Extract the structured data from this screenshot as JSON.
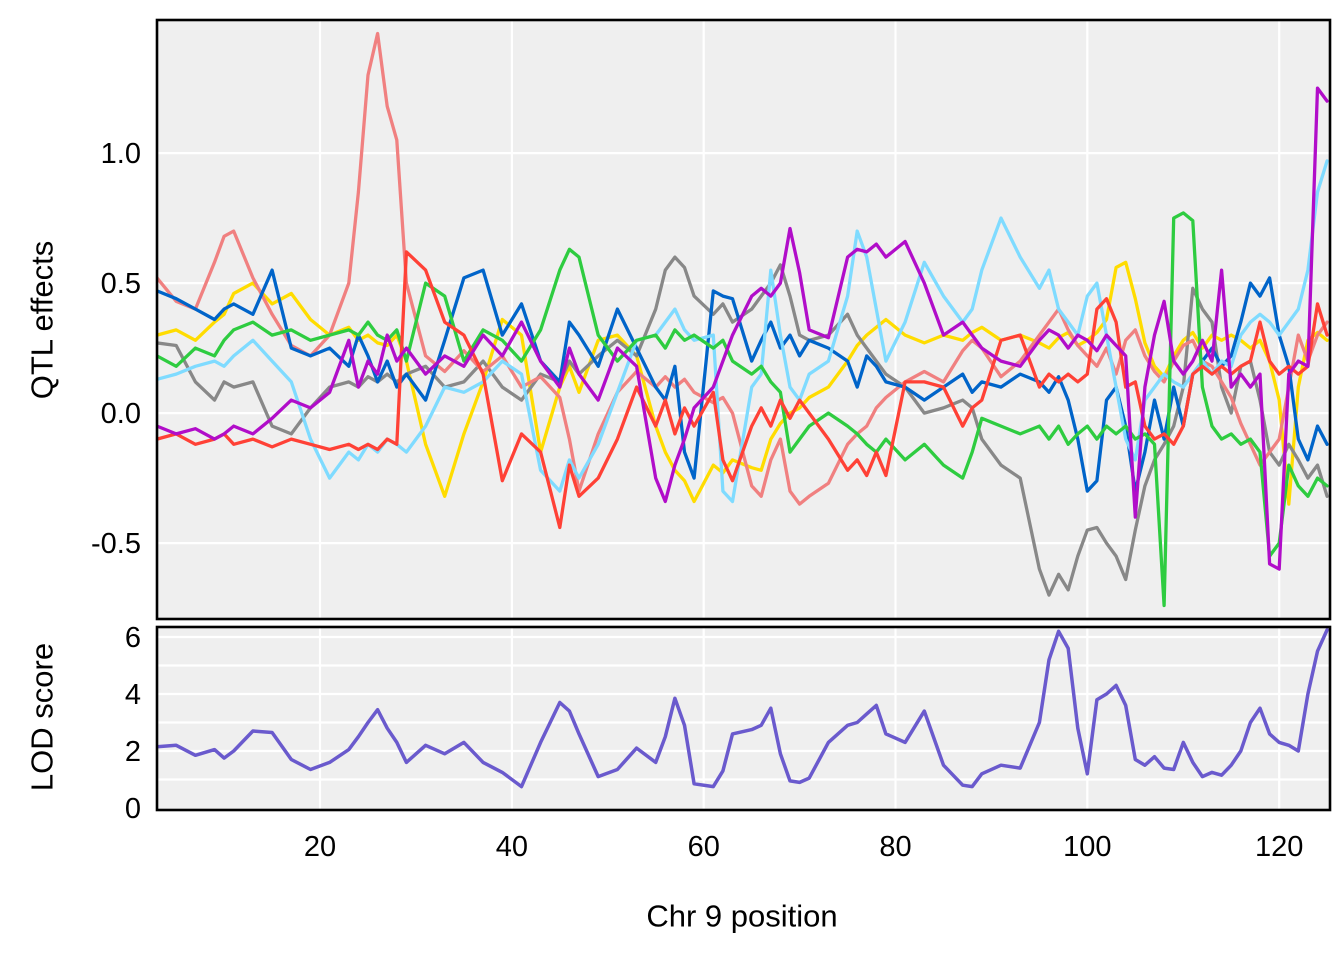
{
  "figure": {
    "background": "#FFFFFF",
    "panel_background": "#EFEFEF",
    "grid_color": "#FFFFFF",
    "border_color": "#000000",
    "text_color": "#000000",
    "lod_line_color": "#6A5ACD"
  },
  "axes": {
    "x_label": "Chr 9 position",
    "top_y_label": "QTL effects",
    "bottom_y_label": "LOD score",
    "x_ticks": {
      "values": [
        20,
        40,
        60,
        80,
        100,
        120
      ],
      "labels": [
        "20",
        "40",
        "60",
        "80",
        "100",
        "120"
      ]
    },
    "top_y_ticks": {
      "values": [
        1.0,
        0.5,
        0.0,
        -0.5
      ],
      "labels": [
        "1.0",
        "0.5",
        "0.0",
        "-0.5"
      ]
    },
    "bottom_y_ticks": {
      "values": [
        6,
        4,
        2,
        0
      ],
      "labels": [
        "6",
        "4",
        "2",
        "0"
      ]
    }
  },
  "chart_data": [
    {
      "type": "line",
      "panel": "QTL effects",
      "ylabel": "QTL effects",
      "xlabel": "Chr 9 position",
      "xlim": [
        3,
        125.3
      ],
      "ylim": [
        -0.792,
        1.512
      ],
      "grid": true,
      "legend": "none",
      "x_gridlines": [
        20,
        40,
        60,
        80,
        100,
        120
      ],
      "y_gridlines": [
        1.0,
        0.5,
        0.0,
        -0.5
      ],
      "x": [
        3,
        5,
        7,
        9,
        10,
        11,
        13,
        15,
        17,
        19,
        21,
        23,
        24,
        25,
        26,
        27,
        28,
        29,
        31,
        33,
        35,
        37,
        39,
        41,
        43,
        45,
        46,
        47,
        49,
        51,
        53,
        55,
        56,
        57,
        58,
        59,
        61,
        62,
        63,
        65,
        66,
        67,
        68,
        69,
        70,
        71,
        73,
        75,
        76,
        77,
        78,
        79,
        81,
        83,
        85,
        87,
        88,
        89,
        91,
        93,
        95,
        96,
        97,
        98,
        99,
        100,
        101,
        102,
        103,
        104,
        105,
        106,
        107,
        108,
        109,
        110,
        111,
        112,
        113,
        114,
        115,
        116,
        117,
        118,
        119,
        120,
        121,
        122,
        123,
        124,
        125
      ],
      "series": [
        {
          "name": "yellow",
          "color": "#FFDC00",
          "values": [
            0.3,
            0.32,
            0.28,
            0.35,
            0.38,
            0.46,
            0.5,
            0.42,
            0.46,
            0.36,
            0.3,
            0.33,
            0.28,
            0.3,
            0.27,
            0.26,
            0.3,
            0.2,
            -0.12,
            -0.32,
            -0.08,
            0.12,
            0.36,
            0.3,
            -0.15,
            0.1,
            0.18,
            0.08,
            0.28,
            0.3,
            0.22,
            -0.05,
            -0.15,
            -0.22,
            -0.26,
            -0.34,
            -0.2,
            -0.23,
            -0.18,
            -0.21,
            -0.22,
            -0.1,
            -0.04,
            0.0,
            0.02,
            0.06,
            0.1,
            0.2,
            0.26,
            0.3,
            0.33,
            0.36,
            0.3,
            0.27,
            0.3,
            0.28,
            0.31,
            0.33,
            0.28,
            0.3,
            0.27,
            0.25,
            0.29,
            0.31,
            0.26,
            0.28,
            0.31,
            0.36,
            0.56,
            0.58,
            0.44,
            0.27,
            0.18,
            0.14,
            0.22,
            0.28,
            0.31,
            0.25,
            0.3,
            0.28,
            0.3,
            0.28,
            0.25,
            0.28,
            0.2,
            0.05,
            -0.35,
            0.1,
            0.28,
            0.31,
            0.28
          ]
        },
        {
          "name": "gray",
          "color": "#888888",
          "values": [
            0.27,
            0.26,
            0.12,
            0.05,
            0.12,
            0.1,
            0.12,
            -0.05,
            -0.08,
            0.02,
            0.1,
            0.12,
            0.1,
            0.14,
            0.12,
            0.15,
            0.12,
            0.15,
            0.18,
            0.1,
            0.12,
            0.2,
            0.1,
            0.05,
            0.15,
            0.12,
            0.2,
            0.15,
            0.22,
            0.28,
            0.22,
            0.4,
            0.55,
            0.6,
            0.56,
            0.45,
            0.38,
            0.42,
            0.35,
            0.4,
            0.45,
            0.5,
            0.57,
            0.45,
            0.3,
            0.28,
            0.3,
            0.38,
            0.3,
            0.25,
            0.2,
            0.15,
            0.1,
            0.0,
            0.02,
            0.05,
            0.02,
            -0.1,
            -0.2,
            -0.25,
            -0.6,
            -0.7,
            -0.62,
            -0.68,
            -0.55,
            -0.45,
            -0.44,
            -0.5,
            -0.55,
            -0.64,
            -0.45,
            -0.28,
            -0.18,
            -0.12,
            -0.05,
            0.1,
            0.48,
            0.4,
            0.35,
            0.1,
            0.0,
            0.18,
            0.2,
            0.05,
            -0.15,
            -0.2,
            -0.12,
            -0.18,
            -0.25,
            -0.2,
            -0.32
          ]
        },
        {
          "name": "salmon",
          "color": "#F08080",
          "values": [
            0.52,
            0.43,
            0.4,
            0.58,
            0.68,
            0.7,
            0.52,
            0.38,
            0.26,
            0.22,
            0.3,
            0.5,
            0.85,
            1.3,
            1.46,
            1.18,
            1.05,
            0.5,
            0.22,
            0.16,
            0.24,
            0.16,
            0.22,
            0.1,
            0.14,
            0.06,
            -0.1,
            -0.3,
            -0.08,
            0.08,
            0.16,
            0.1,
            0.14,
            0.1,
            0.13,
            0.08,
            0.04,
            0.06,
            0.0,
            -0.28,
            -0.32,
            -0.18,
            -0.1,
            -0.3,
            -0.35,
            -0.32,
            -0.27,
            -0.12,
            -0.08,
            -0.05,
            0.02,
            0.06,
            0.12,
            0.16,
            0.12,
            0.24,
            0.28,
            0.25,
            0.14,
            0.2,
            0.3,
            0.35,
            0.4,
            0.32,
            0.26,
            0.22,
            0.18,
            0.25,
            0.15,
            0.28,
            0.32,
            0.22,
            0.16,
            0.12,
            0.2,
            0.26,
            0.28,
            0.2,
            0.18,
            0.12,
            0.06,
            -0.04,
            -0.12,
            -0.2,
            -0.15,
            -0.1,
            0.1,
            0.3,
            0.2,
            0.3,
            0.35
          ]
        },
        {
          "name": "dark-blue",
          "color": "#0064C9",
          "values": [
            0.47,
            0.44,
            0.4,
            0.36,
            0.4,
            0.42,
            0.38,
            0.55,
            0.25,
            0.22,
            0.25,
            0.18,
            0.3,
            0.22,
            0.12,
            0.2,
            0.1,
            0.15,
            0.05,
            0.28,
            0.52,
            0.55,
            0.3,
            0.42,
            0.2,
            0.12,
            0.35,
            0.3,
            0.18,
            0.4,
            0.25,
            0.1,
            0.05,
            0.18,
            -0.15,
            -0.25,
            0.47,
            0.45,
            0.44,
            0.2,
            0.28,
            0.35,
            0.25,
            0.3,
            0.22,
            0.28,
            0.25,
            0.2,
            0.1,
            0.22,
            0.18,
            0.12,
            0.1,
            0.05,
            0.1,
            0.15,
            0.08,
            0.12,
            0.1,
            0.15,
            0.12,
            0.08,
            0.14,
            0.05,
            -0.1,
            -0.3,
            -0.26,
            0.05,
            0.1,
            -0.05,
            -0.3,
            -0.15,
            0.05,
            -0.1,
            0.1,
            -0.05,
            0.15,
            0.2,
            0.25,
            0.18,
            0.22,
            0.35,
            0.5,
            0.45,
            0.52,
            0.3,
            0.18,
            -0.1,
            -0.18,
            -0.05,
            -0.12
          ]
        },
        {
          "name": "light-blue",
          "color": "#7FDBFF",
          "values": [
            0.13,
            0.15,
            0.18,
            0.2,
            0.18,
            0.22,
            0.28,
            0.2,
            0.12,
            -0.1,
            -0.25,
            -0.15,
            -0.18,
            -0.12,
            -0.15,
            -0.1,
            -0.12,
            -0.15,
            -0.05,
            0.1,
            0.08,
            0.12,
            0.2,
            0.15,
            -0.22,
            -0.3,
            -0.18,
            -0.25,
            -0.12,
            0.08,
            0.28,
            0.3,
            0.35,
            0.4,
            0.32,
            0.28,
            0.3,
            -0.3,
            -0.34,
            0.1,
            0.15,
            0.55,
            0.3,
            0.1,
            0.05,
            0.15,
            0.2,
            0.45,
            0.7,
            0.6,
            0.4,
            0.2,
            0.35,
            0.58,
            0.45,
            0.35,
            0.4,
            0.55,
            0.75,
            0.6,
            0.48,
            0.55,
            0.4,
            0.35,
            0.3,
            0.45,
            0.5,
            0.3,
            0.1,
            -0.1,
            -0.18,
            0.05,
            0.1,
            0.15,
            0.12,
            0.1,
            0.15,
            0.2,
            0.15,
            0.2,
            0.18,
            0.3,
            0.35,
            0.38,
            0.35,
            0.3,
            0.35,
            0.4,
            0.55,
            0.85,
            0.97
          ]
        },
        {
          "name": "green",
          "color": "#2ECC40",
          "values": [
            0.22,
            0.18,
            0.25,
            0.22,
            0.28,
            0.32,
            0.35,
            0.3,
            0.32,
            0.28,
            0.3,
            0.32,
            0.3,
            0.35,
            0.3,
            0.28,
            0.32,
            0.2,
            0.5,
            0.45,
            0.2,
            0.32,
            0.28,
            0.2,
            0.32,
            0.55,
            0.63,
            0.6,
            0.3,
            0.2,
            0.28,
            0.3,
            0.25,
            0.32,
            0.28,
            0.3,
            0.25,
            0.28,
            0.2,
            0.15,
            0.18,
            0.12,
            0.08,
            -0.15,
            -0.1,
            -0.05,
            0.0,
            -0.05,
            -0.08,
            -0.12,
            -0.15,
            -0.1,
            -0.18,
            -0.12,
            -0.2,
            -0.25,
            -0.15,
            -0.02,
            -0.05,
            -0.08,
            -0.05,
            -0.1,
            -0.05,
            -0.12,
            -0.08,
            -0.05,
            -0.1,
            -0.05,
            -0.08,
            -0.05,
            -0.1,
            -0.08,
            -0.12,
            -0.74,
            0.75,
            0.77,
            0.74,
            0.1,
            -0.05,
            -0.1,
            -0.08,
            -0.12,
            -0.1,
            -0.15,
            -0.55,
            -0.5,
            -0.2,
            -0.28,
            -0.32,
            -0.25,
            -0.28
          ]
        },
        {
          "name": "red",
          "color": "#FF4136",
          "values": [
            -0.1,
            -0.08,
            -0.12,
            -0.1,
            -0.08,
            -0.12,
            -0.1,
            -0.13,
            -0.1,
            -0.12,
            -0.14,
            -0.12,
            -0.14,
            -0.12,
            -0.14,
            -0.1,
            -0.12,
            0.62,
            0.55,
            0.35,
            0.3,
            0.15,
            -0.26,
            -0.08,
            -0.15,
            -0.44,
            -0.2,
            -0.32,
            -0.25,
            -0.1,
            0.1,
            -0.05,
            0.05,
            -0.08,
            0.02,
            -0.05,
            0.08,
            -0.18,
            -0.26,
            -0.05,
            0.02,
            -0.05,
            0.05,
            -0.02,
            0.05,
            0.0,
            -0.1,
            -0.22,
            -0.18,
            -0.24,
            -0.15,
            -0.24,
            0.12,
            0.12,
            0.1,
            -0.05,
            0.02,
            0.05,
            0.28,
            0.3,
            0.1,
            0.15,
            0.12,
            0.15,
            0.12,
            0.15,
            0.4,
            0.44,
            0.35,
            0.1,
            0.12,
            -0.05,
            -0.1,
            -0.08,
            -0.12,
            -0.05,
            0.15,
            0.18,
            0.15,
            0.18,
            0.15,
            0.18,
            0.2,
            0.35,
            0.2,
            0.15,
            0.18,
            0.15,
            0.18,
            0.42,
            0.3
          ]
        },
        {
          "name": "purple",
          "color": "#B10DC9",
          "values": [
            -0.05,
            -0.08,
            -0.06,
            -0.1,
            -0.08,
            -0.05,
            -0.08,
            -0.02,
            0.05,
            0.02,
            0.08,
            0.28,
            0.1,
            0.2,
            0.15,
            0.3,
            0.2,
            0.25,
            0.15,
            0.22,
            0.18,
            0.3,
            0.22,
            0.35,
            0.2,
            0.1,
            0.25,
            0.15,
            0.05,
            0.25,
            0.18,
            -0.25,
            -0.34,
            -0.2,
            -0.1,
            0.02,
            0.1,
            0.2,
            0.3,
            0.45,
            0.48,
            0.45,
            0.5,
            0.71,
            0.54,
            0.32,
            0.29,
            0.6,
            0.63,
            0.62,
            0.65,
            0.6,
            0.66,
            0.5,
            0.3,
            0.35,
            0.3,
            0.25,
            0.2,
            0.18,
            0.28,
            0.32,
            0.3,
            0.25,
            0.3,
            0.28,
            0.24,
            0.3,
            0.26,
            0.22,
            -0.4,
            0.1,
            0.3,
            0.43,
            0.2,
            0.15,
            0.2,
            0.28,
            0.2,
            0.55,
            0.1,
            0.15,
            0.1,
            0.15,
            -0.58,
            -0.6,
            0.15,
            0.2,
            0.18,
            1.25,
            1.2
          ]
        }
      ]
    },
    {
      "type": "line",
      "panel": "LOD score",
      "ylabel": "LOD score",
      "xlabel": "Chr 9 position",
      "xlim": [
        3,
        125.3
      ],
      "ylim": [
        -0.07,
        6.35
      ],
      "grid": true,
      "legend": "none",
      "x_gridlines": [
        20,
        40,
        60,
        80,
        100,
        120
      ],
      "y_gridlines": [
        1,
        2,
        3,
        4,
        5,
        6
      ],
      "x": [
        3,
        5,
        7,
        9,
        10,
        11,
        13,
        15,
        17,
        19,
        21,
        23,
        24,
        25,
        26,
        27,
        28,
        29,
        31,
        33,
        35,
        37,
        39,
        41,
        43,
        45,
        46,
        47,
        49,
        51,
        53,
        55,
        56,
        57,
        58,
        59,
        61,
        62,
        63,
        65,
        66,
        67,
        68,
        69,
        70,
        71,
        73,
        75,
        76,
        77,
        78,
        79,
        81,
        83,
        85,
        87,
        88,
        89,
        91,
        93,
        95,
        96,
        97,
        98,
        99,
        100,
        101,
        102,
        103,
        104,
        105,
        106,
        107,
        108,
        109,
        110,
        111,
        112,
        113,
        114,
        115,
        116,
        117,
        118,
        119,
        120,
        121,
        122,
        123,
        124,
        125
      ],
      "series": [
        {
          "name": "LOD",
          "color": "#6A5ACD",
          "values": [
            2.15,
            2.2,
            1.85,
            2.05,
            1.75,
            2.0,
            2.7,
            2.65,
            1.7,
            1.35,
            1.6,
            2.05,
            2.5,
            3.0,
            3.45,
            2.8,
            2.3,
            1.6,
            2.2,
            1.9,
            2.3,
            1.6,
            1.25,
            0.75,
            2.3,
            3.7,
            3.4,
            2.6,
            1.1,
            1.35,
            2.1,
            1.6,
            2.5,
            3.85,
            2.9,
            0.85,
            0.75,
            1.3,
            2.6,
            2.75,
            2.9,
            3.5,
            1.9,
            0.95,
            0.9,
            1.05,
            2.3,
            2.9,
            3.0,
            3.3,
            3.6,
            2.6,
            2.3,
            3.4,
            1.5,
            0.8,
            0.75,
            1.2,
            1.5,
            1.4,
            3.0,
            5.2,
            6.2,
            5.6,
            2.8,
            1.2,
            3.8,
            4.0,
            4.3,
            3.6,
            1.7,
            1.5,
            1.8,
            1.4,
            1.35,
            2.3,
            1.6,
            1.1,
            1.25,
            1.15,
            1.5,
            2.0,
            3.0,
            3.5,
            2.6,
            2.3,
            2.2,
            2.0,
            4.0,
            5.5,
            6.25
          ]
        }
      ]
    }
  ]
}
